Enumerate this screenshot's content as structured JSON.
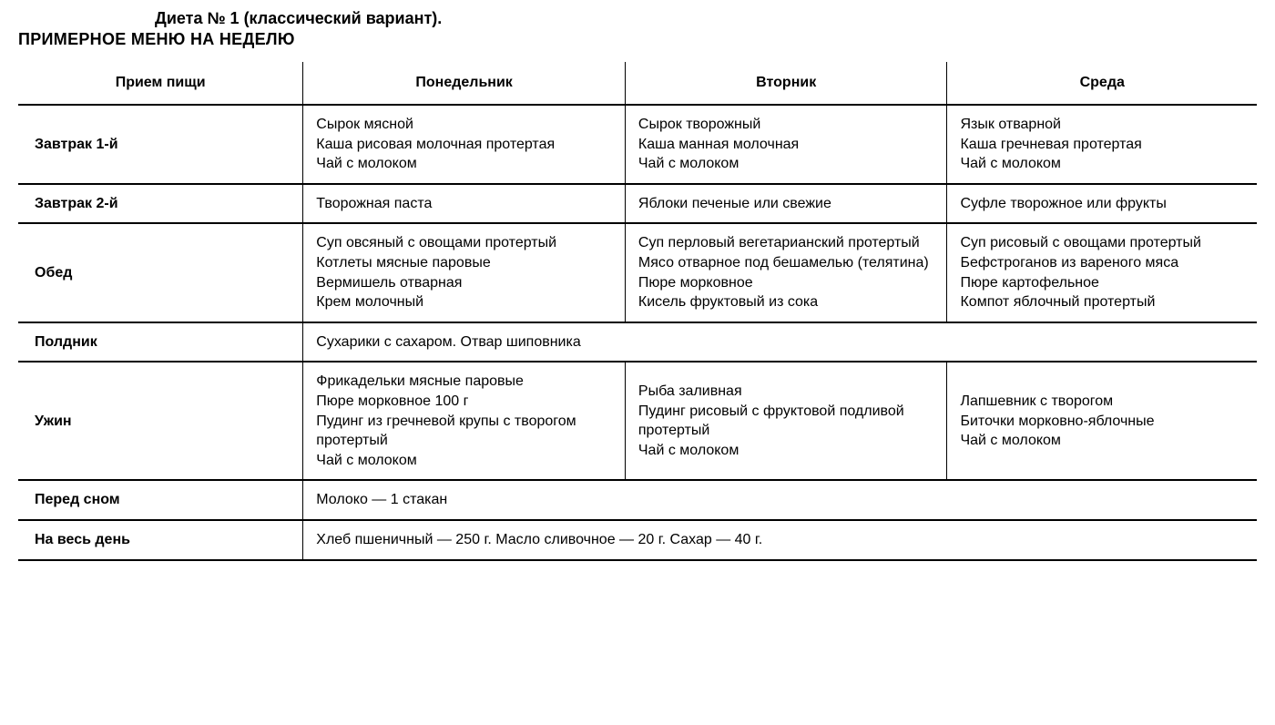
{
  "header": {
    "title": "Диета № 1 (классический вариант).",
    "subtitle": "ПРИМЕРНОЕ МЕНЮ НА НЕДЕЛЮ"
  },
  "table": {
    "type": "table",
    "background_color": "#ffffff",
    "text_color": "#000000",
    "border_color": "#000000",
    "header_fontsize_pt": 12,
    "cell_fontsize_pt": 12,
    "rowlabel_fontweight": 700,
    "columns": [
      "Прием пищи",
      "Понедельник",
      "Вторник",
      "Среда"
    ],
    "col_widths_pct": [
      23,
      26,
      26,
      25
    ],
    "rows": [
      {
        "label": "Завтрак 1-й",
        "span": false,
        "cells": [
          [
            "Сырок мясной",
            "Каша рисовая молочная про­тертая",
            "Чай с молоком"
          ],
          [
            "Сырок творожный",
            "Каша манная молочная",
            "Чай с молоком"
          ],
          [
            "Язык отварной",
            "Каша гречневая протертая",
            "Чай с молоком"
          ]
        ]
      },
      {
        "label": "Завтрак 2-й",
        "span": false,
        "cells": [
          [
            "Творожная паста"
          ],
          [
            "Яблоки печеные или свежие"
          ],
          [
            "Суфле творожное или фрукты"
          ]
        ]
      },
      {
        "label": "Обед",
        "span": false,
        "cells": [
          [
            "Суп овсяный с овощами про­тертый",
            "Котлеты мясные паровые",
            "Вермишель отварная",
            "Крем молочный"
          ],
          [
            "Суп перловый вегетариан­ский протертый",
            "Мясо отварное под бешаме­лью (телятина)",
            "Пюре морковное",
            "Кисель фруктовый из сока"
          ],
          [
            "Суп рисовый с овощами про­тертый",
            "Бефстроганов из вареного мяса",
            "Пюре картофельное",
            "Компот яблочный протертый"
          ]
        ]
      },
      {
        "label": "Полдник",
        "span": true,
        "spanned": "Сухарики с сахаром. Отвар шиповника"
      },
      {
        "label": "Ужин",
        "span": false,
        "cells": [
          [
            "Фрикадельки мясные паро­вые",
            "Пюре морковное 100 г",
            "Пудинг из гречневой крупы с творогом протертый",
            "Чай с молоком"
          ],
          [
            "Рыба заливная",
            "Пудинг рисовый с фруктовой подливой протертый",
            "Чай с молоком"
          ],
          [
            "Лапшевник с творогом",
            "Биточки морковно-яблочные",
            "Чай с молоком"
          ]
        ]
      },
      {
        "label": "Перед сном",
        "span": true,
        "spanned": "Молоко — 1 стакан"
      },
      {
        "label": "На весь день",
        "span": true,
        "spanned": "Хлеб пшеничный — 250 г. Масло сливочное — 20 г. Сахар — 40 г."
      }
    ]
  }
}
